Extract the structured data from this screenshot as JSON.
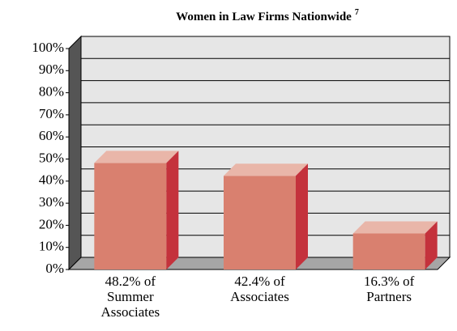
{
  "chart_data": {
    "type": "bar3d",
    "title": "Women in Law Firms Nationwide",
    "title_superscript": "7",
    "categories": [
      "48.2% of Summer Associates",
      "42.4% of Associates",
      "16.3% of Partners"
    ],
    "values": [
      48.2,
      42.4,
      16.3
    ],
    "colors": {
      "front": "#d9806f",
      "top": "#e9b6a9",
      "side": "#c4323c"
    },
    "ylim": [
      0,
      100
    ],
    "yticks": [
      {
        "value": 0,
        "label": "0%"
      },
      {
        "value": 10,
        "label": "10%"
      },
      {
        "value": 20,
        "label": "20%"
      },
      {
        "value": 30,
        "label": "30%"
      },
      {
        "value": 40,
        "label": "40%"
      },
      {
        "value": 50,
        "label": "50%"
      },
      {
        "value": 60,
        "label": "60%"
      },
      {
        "value": 70,
        "label": "70%"
      },
      {
        "value": 80,
        "label": "80%"
      },
      {
        "value": 90,
        "label": "90%"
      },
      {
        "value": 100,
        "label": "100%"
      }
    ],
    "grid": true
  }
}
